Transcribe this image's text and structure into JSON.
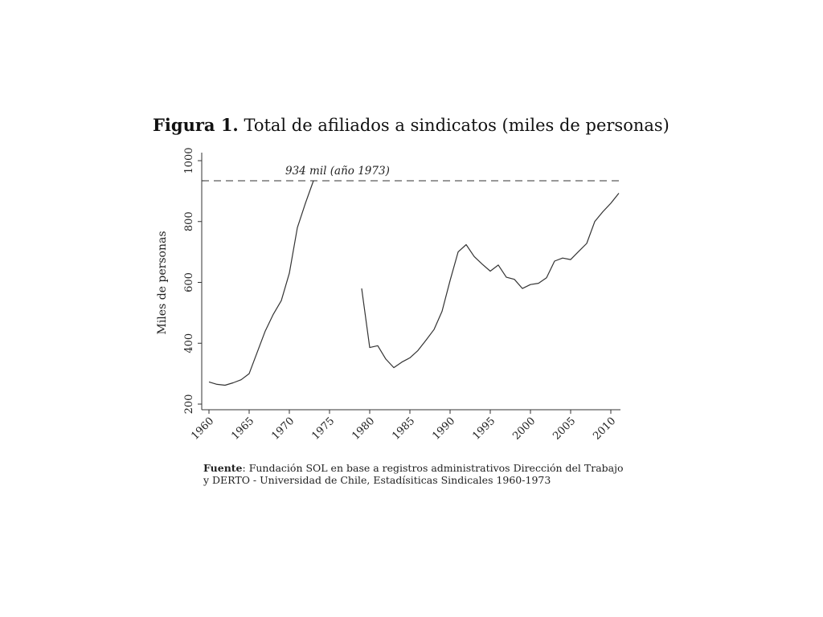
{
  "figure": {
    "label": "Figura 1.",
    "title": "Total de afiliados a sindicatos (miles de personas)"
  },
  "chart_data": {
    "type": "line",
    "ylabel": "Miles de personas",
    "xlabel": "",
    "xlim": [
      1959,
      2012
    ],
    "ylim": [
      200,
      1000
    ],
    "x_ticks": [
      "1960",
      "1965",
      "1970",
      "1975",
      "1980",
      "1985",
      "1990",
      "1995",
      "2000",
      "2005",
      "2010"
    ],
    "y_ticks": [
      "200",
      "400",
      "600",
      "800",
      "1000"
    ],
    "grid": false,
    "series": [
      {
        "segment": "1960-1973",
        "x": [
          1960,
          1961,
          1962,
          1963,
          1964,
          1965,
          1966,
          1967,
          1968,
          1969,
          1970,
          1971,
          1972,
          1973
        ],
        "values": [
          273,
          265,
          262,
          270,
          280,
          300,
          370,
          440,
          495,
          540,
          630,
          780,
          860,
          934
        ],
        "color": "#333333"
      },
      {
        "segment": "1979-2011",
        "x": [
          1979,
          1980,
          1981,
          1982,
          1983,
          1984,
          1985,
          1986,
          1987,
          1988,
          1989,
          1990,
          1991,
          1992,
          1993,
          1994,
          1995,
          1996,
          1997,
          1998,
          1999,
          2000,
          2001,
          2002,
          2003,
          2004,
          2005,
          2006,
          2007,
          2008,
          2009,
          2010,
          2011
        ],
        "values": [
          580,
          386,
          392,
          348,
          320,
          338,
          352,
          376,
          410,
          445,
          505,
          606,
          700,
          724,
          685,
          660,
          637,
          657,
          617,
          610,
          580,
          593,
          597,
          615,
          670,
          680,
          675,
          702,
          728,
          800,
          832,
          860,
          893
        ],
        "color": "#333333"
      }
    ],
    "reference_line": {
      "y": 934,
      "label": "934 mil (año 1973)",
      "style": "dashed"
    }
  },
  "source": {
    "label": "Fuente",
    "line1": ": Fundación SOL en base a registros administrativos Dirección del Trabajo",
    "line2": "y DERTO - Universidad de Chile, Estadísiticas Sindicales 1960-1973"
  }
}
